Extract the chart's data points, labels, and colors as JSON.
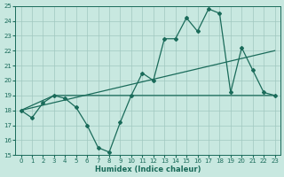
{
  "xlabel": "Humidex (Indice chaleur)",
  "bg_color": "#c8e8e0",
  "grid_color": "#a0c8c0",
  "line_color": "#1a6b5a",
  "xlim": [
    -0.5,
    23.5
  ],
  "ylim": [
    15,
    25
  ],
  "xticks": [
    0,
    1,
    2,
    3,
    4,
    5,
    6,
    7,
    8,
    9,
    10,
    11,
    12,
    13,
    14,
    15,
    16,
    17,
    18,
    19,
    20,
    21,
    22,
    23
  ],
  "yticks": [
    15,
    16,
    17,
    18,
    19,
    20,
    21,
    22,
    23,
    24,
    25
  ],
  "line1_x": [
    0,
    1,
    2,
    3,
    4,
    5,
    6,
    7,
    8,
    9,
    10,
    11,
    12,
    13,
    14,
    15,
    16,
    17,
    18,
    19,
    20,
    21,
    22,
    23
  ],
  "line1_y": [
    18.0,
    17.5,
    18.5,
    19.0,
    18.8,
    18.2,
    17.0,
    15.5,
    15.2,
    17.2,
    19.0,
    20.5,
    20.0,
    22.8,
    22.8,
    24.2,
    23.3,
    24.8,
    24.5,
    19.2,
    22.2,
    20.7,
    19.2,
    19.0
  ],
  "line2_x": [
    0,
    3,
    9,
    23
  ],
  "line2_y": [
    18.0,
    19.0,
    19.0,
    19.0
  ]
}
